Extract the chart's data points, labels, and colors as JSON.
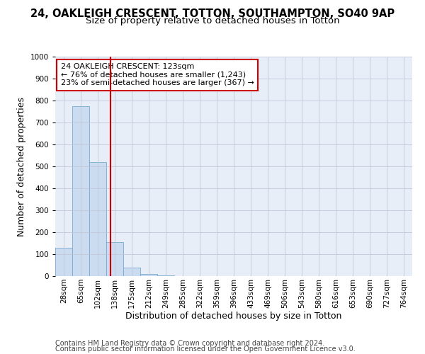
{
  "title1": "24, OAKLEIGH CRESCENT, TOTTON, SOUTHAMPTON, SO40 9AP",
  "title2": "Size of property relative to detached houses in Totton",
  "xlabel": "Distribution of detached houses by size in Totton",
  "ylabel": "Number of detached properties",
  "bar_labels": [
    "28sqm",
    "65sqm",
    "102sqm",
    "138sqm",
    "175sqm",
    "212sqm",
    "249sqm",
    "285sqm",
    "322sqm",
    "359sqm",
    "396sqm",
    "433sqm",
    "469sqm",
    "506sqm",
    "543sqm",
    "580sqm",
    "616sqm",
    "653sqm",
    "690sqm",
    "727sqm",
    "764sqm"
  ],
  "bar_values": [
    130,
    775,
    520,
    155,
    40,
    10,
    2,
    0,
    0,
    0,
    0,
    0,
    0,
    0,
    0,
    0,
    0,
    0,
    0,
    0,
    0
  ],
  "bar_color": "#ccdcf0",
  "bar_edge_color": "#7aaad0",
  "vline_x": 2.73,
  "vline_color": "#cc0000",
  "ylim": [
    0,
    1000
  ],
  "yticks": [
    0,
    100,
    200,
    300,
    400,
    500,
    600,
    700,
    800,
    900,
    1000
  ],
  "annotation_text": "24 OAKLEIGH CRESCENT: 123sqm\n← 76% of detached houses are smaller (1,243)\n23% of semi-detached houses are larger (367) →",
  "annotation_box_color": "#ffffff",
  "annotation_box_edge": "#cc0000",
  "footer1": "Contains HM Land Registry data © Crown copyright and database right 2024.",
  "footer2": "Contains public sector information licensed under the Open Government Licence v3.0.",
  "bg_color": "#ffffff",
  "plot_bg_color": "#e8eef8",
  "grid_color": "#c0c8d8",
  "title1_fontsize": 10.5,
  "title2_fontsize": 9.5,
  "axis_label_fontsize": 9,
  "tick_fontsize": 7.5,
  "annotation_fontsize": 8,
  "footer_fontsize": 7
}
